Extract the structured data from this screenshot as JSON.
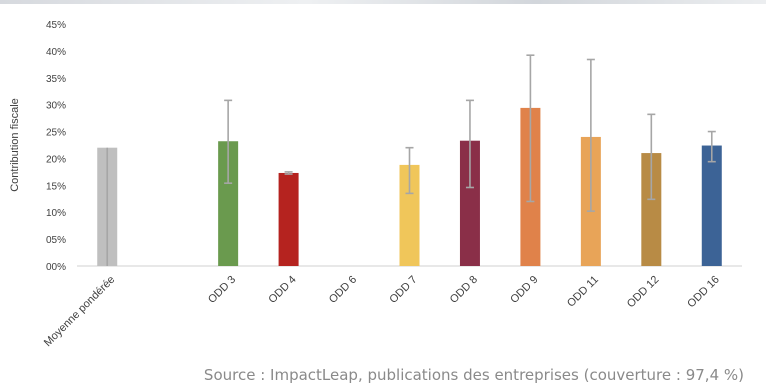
{
  "chart_data": {
    "type": "bar",
    "title": "",
    "xlabel": "",
    "ylabel": "Contribution fiscale",
    "ylim": [
      0,
      45
    ],
    "yticks": [
      "00%",
      "05%",
      "10%",
      "15%",
      "20%",
      "25%",
      "30%",
      "35%",
      "40%",
      "45%"
    ],
    "categories": [
      "Moyenne pondérée",
      "",
      "ODD 3",
      "ODD 4",
      "ODD 6",
      "ODD 7",
      "ODD 8",
      "ODD 9",
      "ODD 11",
      "ODD 12",
      "ODD 16"
    ],
    "values": [
      22,
      null,
      23.2,
      17.3,
      null,
      18.8,
      23.3,
      29.4,
      24,
      21,
      22.4
    ],
    "error_low": [
      0,
      null,
      15.4,
      17.1,
      null,
      13.5,
      14.6,
      12,
      10.2,
      12.4,
      19.4
    ],
    "error_high": [
      22,
      null,
      30.8,
      17.5,
      null,
      22,
      30.8,
      39.2,
      38.4,
      28.2,
      25
    ],
    "colors": [
      "#bfbfbf",
      null,
      "#6a9a4e",
      "#b5231f",
      null,
      "#f0c65a",
      "#8a2f48",
      "#e0824a",
      "#e8a458",
      "#b88b45",
      "#3c6396"
    ],
    "error_color": "#a6a6a6",
    "grid": false,
    "legend": "none"
  },
  "source": "Source : ImpactLeap, publications des entreprises (couverture : 97,4 %)"
}
